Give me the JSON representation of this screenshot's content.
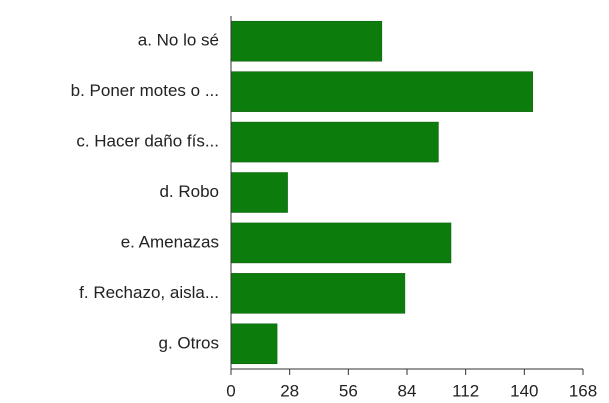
{
  "chart_data": {
    "type": "bar",
    "orientation": "horizontal",
    "categories": [
      "a. No lo sé",
      "b. Poner motes o ...",
      "c. Hacer daño fís...",
      "d. Robo",
      "e. Amenazas",
      "f. Rechazo, aisla...",
      "g. Otros"
    ],
    "values": [
      72,
      144,
      99,
      27,
      105,
      83,
      22
    ],
    "color": "#0c7c0c",
    "xlim": [
      0,
      168
    ],
    "xticks": [
      0,
      28,
      56,
      84,
      112,
      140,
      168
    ],
    "grid": false
  }
}
